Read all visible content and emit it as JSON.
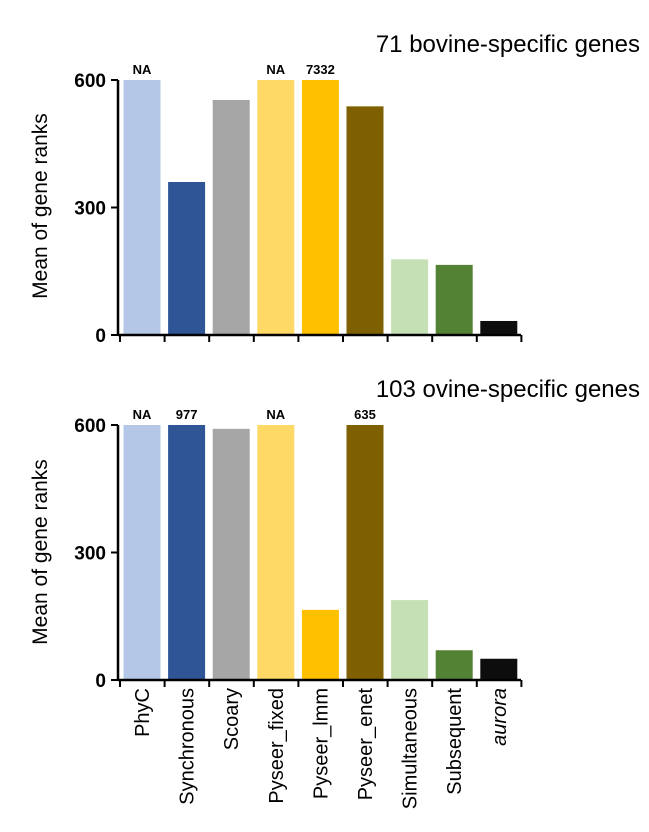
{
  "chart_data": [
    {
      "type": "bar",
      "title": "71 bovine-specific genes",
      "ylabel": "Mean of gene ranks",
      "xlabel": "",
      "ylim": [
        0,
        600
      ],
      "yticks": [
        0,
        300,
        600
      ],
      "grid": false,
      "legend": "none",
      "categories": [
        "PhyC",
        "Synchronous",
        "Scoary",
        "Pyseer_fixed",
        "Pyseer_lmm",
        "Pyseer_enet",
        "Simultaneous",
        "Subsequent",
        "aurora"
      ],
      "values": [
        600,
        360,
        553,
        600,
        600,
        538,
        178,
        165,
        33
      ],
      "bar_labels": [
        "NA",
        "",
        "",
        "NA",
        "7332",
        "",
        "",
        "",
        ""
      ]
    },
    {
      "type": "bar",
      "title": "103 ovine-specific genes",
      "ylabel": "Mean of gene ranks",
      "xlabel": "",
      "ylim": [
        0,
        600
      ],
      "yticks": [
        0,
        300,
        600
      ],
      "grid": false,
      "legend": "none",
      "categories": [
        "PhyC",
        "Synchronous",
        "Scoary",
        "Pyseer_fixed",
        "Pyseer_lmm",
        "Pyseer_enet",
        "Simultaneous",
        "Subsequent",
        "aurora"
      ],
      "values": [
        600,
        600,
        591,
        600,
        165,
        600,
        188,
        70,
        50
      ],
      "bar_labels": [
        "NA",
        "977",
        "",
        "NA",
        "",
        "635",
        "",
        "",
        ""
      ]
    }
  ],
  "colors": [
    "#b4c7e7",
    "#2f5597",
    "#a6a6a6",
    "#ffd966",
    "#ffc000",
    "#7f6000",
    "#c5e0b4",
    "#548235",
    "#0d0d0d"
  ],
  "italic_categories": [
    "aurora"
  ]
}
